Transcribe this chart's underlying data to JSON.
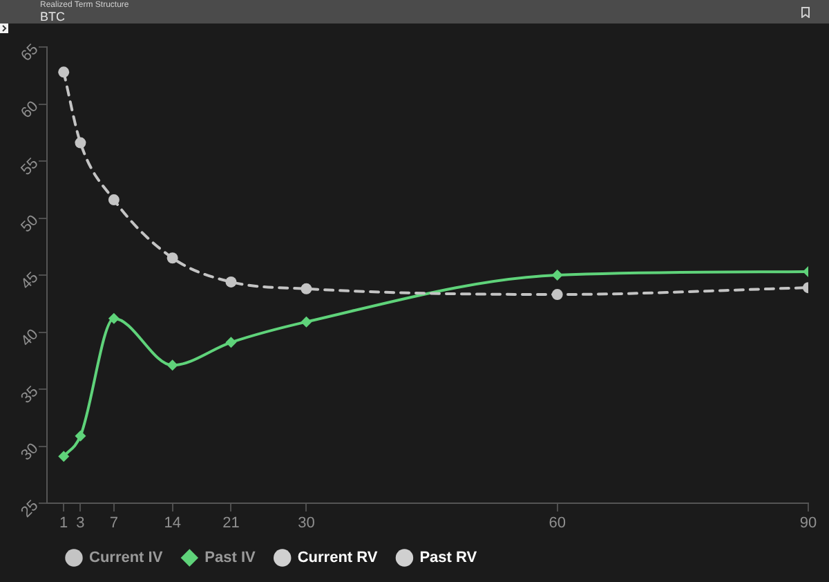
{
  "chart_data": {
    "type": "line",
    "title": "Realized Term Structure",
    "subtitle": "BTC",
    "x": [
      1,
      3,
      7,
      14,
      21,
      30,
      60,
      90
    ],
    "xlim": [
      -1,
      90
    ],
    "xticks": [
      1,
      3,
      7,
      14,
      21,
      30,
      60,
      90
    ],
    "ylim": [
      25,
      65
    ],
    "yticks": [
      25,
      30,
      35,
      40,
      45,
      50,
      55,
      60,
      65
    ],
    "grid": false,
    "legend": "bottom left",
    "series": [
      {
        "name": "Current IV",
        "color": "#c4c4c4",
        "values": [
          62.8,
          56.6,
          51.6,
          46.5,
          44.4,
          43.8,
          43.3,
          43.9
        ],
        "marker": "circle",
        "line_style": "dashed"
      },
      {
        "name": "Past IV",
        "color": "#5fd37a",
        "values": [
          29.1,
          30.9,
          41.2,
          37.1,
          39.1,
          40.9,
          45.0,
          45.3
        ],
        "marker": "diamond",
        "line_style": "solid"
      },
      {
        "name": "Current RV",
        "type": "scatter",
        "color": "#d0d0d0",
        "values": [
          null,
          null,
          null,
          null,
          null,
          null,
          null,
          null
        ],
        "marker": "circle"
      },
      {
        "name": "Past RV",
        "type": "scatter",
        "color": "#d0d0d0",
        "values": [
          null,
          null,
          null,
          null,
          null,
          null,
          null,
          null
        ],
        "marker": "circle"
      }
    ]
  }
}
